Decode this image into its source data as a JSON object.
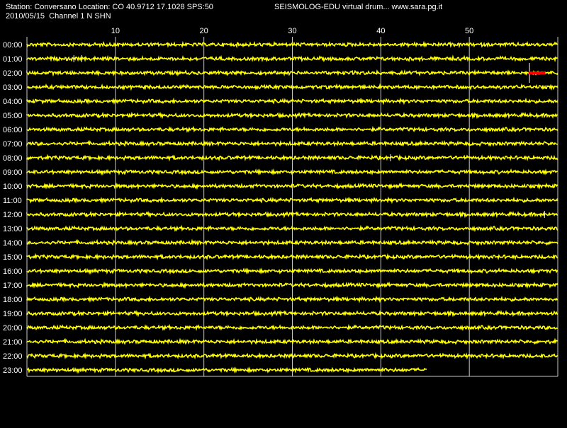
{
  "header": {
    "station_line": "Station: Conversano Location: CO 40.9712 17.1028 SPS:50",
    "date_line": "2010/05/15  Channel 1 N SHN",
    "app_line": "SEISMOLOG-EDU virtual drum... www.sara.pg.it"
  },
  "colors": {
    "background": "#000000",
    "trace": "#ffff00",
    "event": "#ff0000",
    "grid": "#c8c8c8",
    "text": "#ffffff"
  },
  "chart_data": {
    "type": "line",
    "title": "",
    "xlabel": "",
    "ylabel": "",
    "xlim": [
      0,
      60
    ],
    "x_ticks": [
      10,
      20,
      30,
      40,
      50
    ],
    "grid": true,
    "rows": [
      "00:00",
      "01:00",
      "02:00",
      "03:00",
      "04:00",
      "05:00",
      "06:00",
      "07:00",
      "08:00",
      "09:00",
      "10:00",
      "11:00",
      "12:00",
      "13:00",
      "14:00",
      "15:00",
      "16:00",
      "17:00",
      "18:00",
      "19:00",
      "20:00",
      "21:00",
      "22:00",
      "23:00"
    ],
    "last_row_end_minute": 45.2,
    "spikes": [
      {
        "row": "01:00",
        "minute": 5.3
      },
      {
        "row": "01:00",
        "minute": 6.2
      },
      {
        "row": "02:00",
        "minute": 56.8
      },
      {
        "row": "08:00",
        "minute": 41.1
      },
      {
        "row": "12:00",
        "minute": 58.5
      }
    ],
    "events": [
      {
        "row": "02:00",
        "start_minute": 56.7,
        "end_minute": 58.6
      }
    ]
  }
}
